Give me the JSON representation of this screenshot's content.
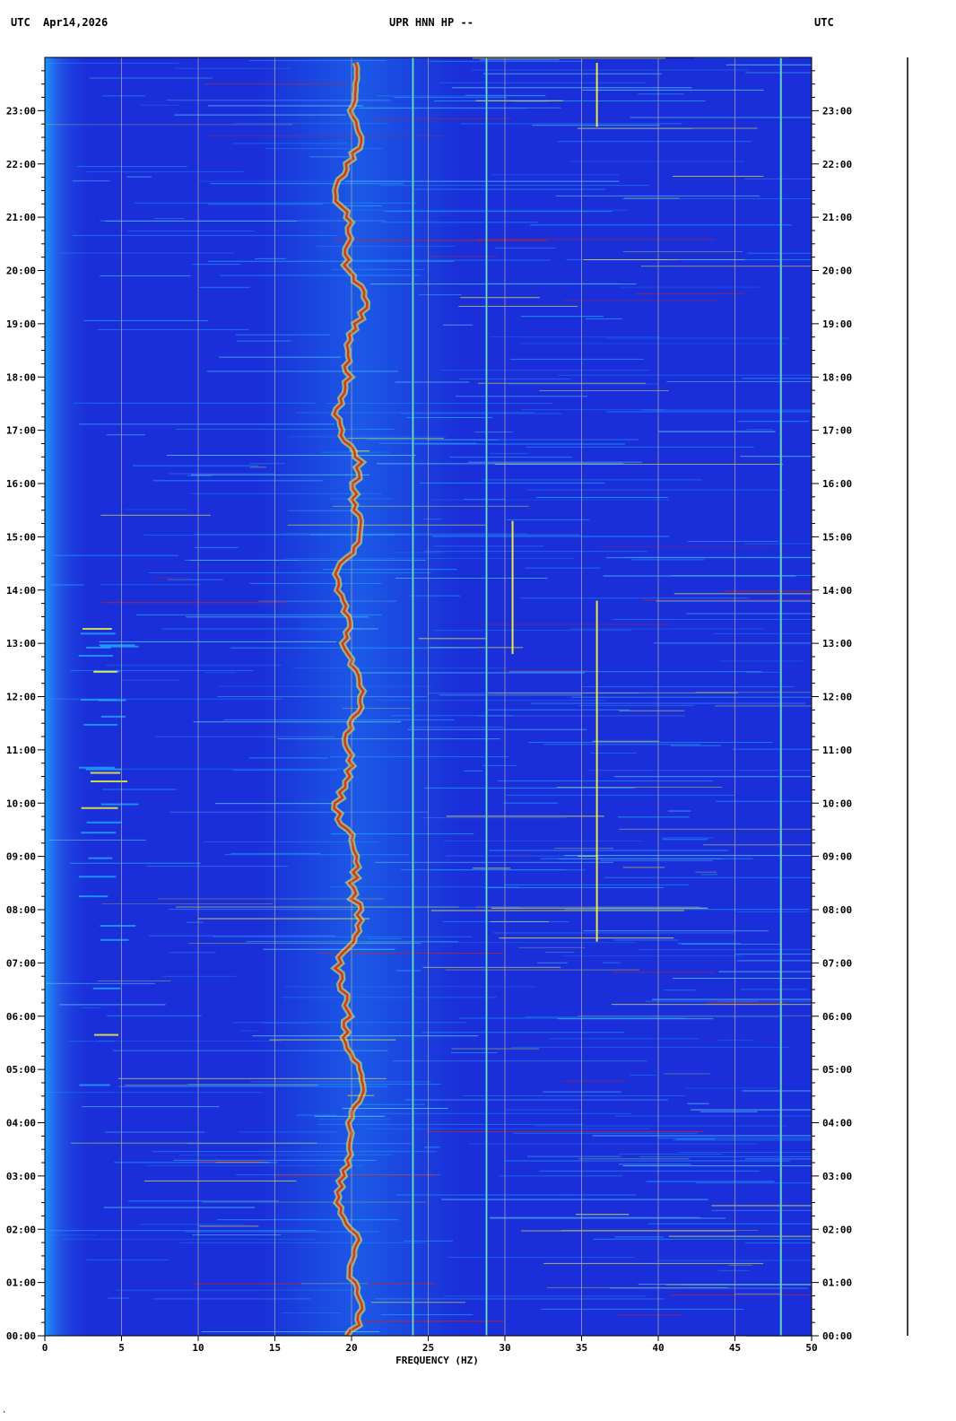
{
  "header": {
    "left_utc": "UTC",
    "date": "Apr14,2026",
    "station": "UPR HNN HP --",
    "right_utc": "UTC"
  },
  "footer_mark": "·",
  "chart_data": {
    "type": "heatmap",
    "title": "UPR HNN HP --",
    "xlabel": "FREQUENCY (HZ)",
    "ylabel": "UTC",
    "xlim": [
      0,
      50
    ],
    "ylim_hours": [
      0,
      24
    ],
    "x_ticks": [
      0,
      5,
      10,
      15,
      20,
      25,
      30,
      35,
      40,
      45,
      50
    ],
    "y_tick_labels": [
      "00:00",
      "01:00",
      "02:00",
      "03:00",
      "04:00",
      "05:00",
      "06:00",
      "07:00",
      "08:00",
      "09:00",
      "10:00",
      "11:00",
      "12:00",
      "13:00",
      "14:00",
      "15:00",
      "16:00",
      "17:00",
      "18:00",
      "19:00",
      "20:00",
      "21:00",
      "22:00",
      "23:00"
    ],
    "grid": true,
    "colors": {
      "background": "#1a2fd9",
      "low": "#0a14b0",
      "mid": "#1fa8ff",
      "high": "#ffff30",
      "peak": "#e02010",
      "grid": "#a8a8a8"
    },
    "persistent_lines_hz": [
      24.0,
      28.8,
      48.0
    ],
    "wandering_band_hz": [
      19,
      21
    ],
    "features": [
      {
        "freq_hz": 36.0,
        "start_hour": 7.4,
        "end_hour": 13.8
      },
      {
        "freq_hz": 36.0,
        "start_hour": 22.7,
        "end_hour": 23.9
      },
      {
        "freq_hz": 30.5,
        "start_hour": 12.8,
        "end_hour": 15.3
      }
    ]
  }
}
